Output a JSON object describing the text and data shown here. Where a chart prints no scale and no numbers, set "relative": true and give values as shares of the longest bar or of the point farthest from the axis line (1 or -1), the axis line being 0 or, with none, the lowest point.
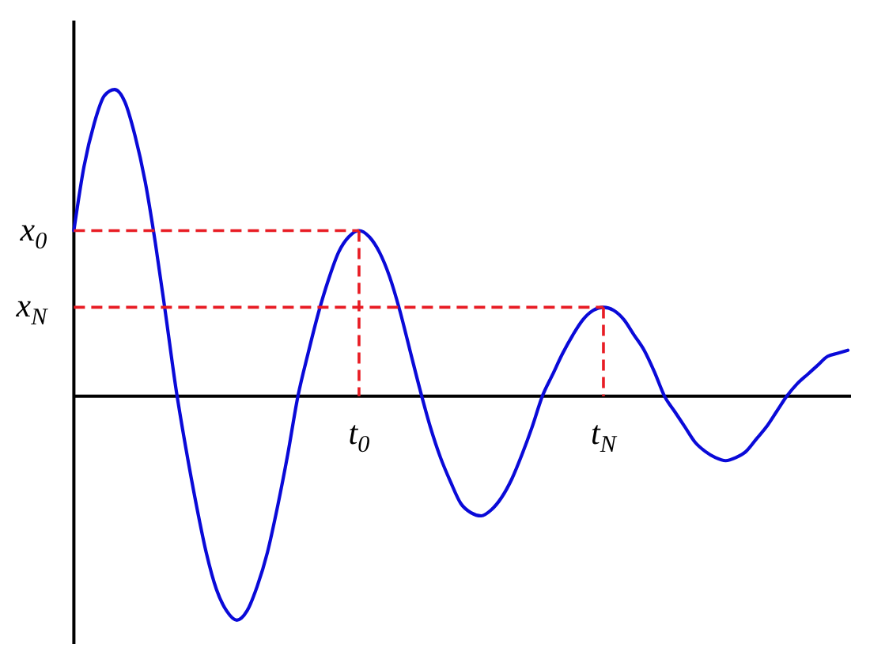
{
  "chart_data": {
    "type": "line",
    "relative": true,
    "categories": [
      null,
      null,
      null,
      null,
      null,
      null,
      null,
      null,
      null,
      null,
      null,
      null,
      null,
      null,
      null,
      null,
      null,
      null,
      null,
      null,
      null,
      null,
      null,
      null,
      null,
      null,
      null,
      null,
      "t$_{0}$",
      null,
      null,
      null,
      null,
      null,
      null,
      null,
      null,
      null,
      null,
      null,
      null,
      null,
      null,
      null,
      null,
      null,
      null,
      null,
      null,
      null,
      null,
      null,
      "t$_{N}$",
      null,
      null,
      null,
      null,
      null,
      null,
      null,
      null,
      null,
      null,
      null,
      null,
      null,
      null,
      null,
      null,
      null,
      null,
      null,
      null,
      null,
      null,
      null,
      null
    ],
    "series": [
      {
        "color": "#0a0ad8",
        "values": [
          0.54,
          0.75,
          0.89,
          0.98,
          1,
          0.96,
          0.85,
          0.7,
          0.5,
          0.27,
          0.03,
          -0.17,
          -0.35,
          -0.51,
          -0.63,
          -0.7,
          -0.73,
          -0.7,
          -0.62,
          -0.51,
          -0.36,
          -0.19,
          0,
          0.14,
          0.27,
          0.38,
          0.47,
          0.52,
          0.54,
          0.52,
          0.47,
          0.39,
          0.28,
          0.15,
          0.02,
          -0.1,
          -0.2,
          -0.28,
          -0.35,
          -0.38,
          -0.39,
          -0.37,
          -0.33,
          -0.27,
          -0.19,
          -0.1,
          0,
          0.07,
          0.14,
          0.2,
          0.25,
          0.28,
          0.29,
          0.28,
          0.25,
          0.2,
          0.15,
          0.08,
          0,
          -0.05,
          -0.1,
          -0.15,
          -0.18,
          -0.2,
          -0.21,
          -0.2,
          -0.18,
          -0.14,
          -0.1,
          -0.05,
          0,
          0.04,
          0.07,
          0.1,
          0.13,
          0.14,
          0.15
        ]
      },
      {
        "name": "x$_{0}$",
        "color": "#e81c24",
        "line_style": "dashed",
        "values": [
          0.54,
          0.54,
          0.54,
          0.54,
          0.54,
          0.54,
          0.54,
          0.54,
          0.54,
          0.54,
          0.54,
          0.54,
          0.54,
          0.54,
          0.54,
          0.54,
          0.54,
          0.54,
          0.54,
          0.54,
          0.54,
          0.54,
          0.54,
          0.54,
          0.54,
          0.54,
          0.54,
          0.54,
          0.54,
          null,
          null,
          null,
          null,
          null,
          null,
          null,
          null,
          null,
          null,
          null,
          null,
          null,
          null,
          null,
          null,
          null,
          null,
          null,
          null,
          null,
          null,
          null,
          null,
          null,
          null,
          null,
          null,
          null,
          null,
          null,
          null,
          null,
          null,
          null,
          null,
          null,
          null,
          null,
          null,
          null,
          null,
          null,
          null,
          null,
          null,
          null,
          null
        ]
      },
      {
        "color": "#e81c24",
        "line_style": "dashed",
        "x": [
          "t$_{0}$",
          "t$_{0}$"
        ],
        "values": [
          0.54,
          0
        ]
      },
      {
        "name": "x$_{N}$",
        "color": "#e81c24",
        "line_style": "dashed",
        "values": [
          0.29,
          0.29,
          0.29,
          0.29,
          0.29,
          0.29,
          0.29,
          0.29,
          0.29,
          0.29,
          0.29,
          0.29,
          0.29,
          0.29,
          0.29,
          0.29,
          0.29,
          0.29,
          0.29,
          0.29,
          0.29,
          0.29,
          0.29,
          0.29,
          0.29,
          0.29,
          0.29,
          0.29,
          0.29,
          0.29,
          0.29,
          0.29,
          0.29,
          0.29,
          0.29,
          0.29,
          0.29,
          0.29,
          0.29,
          0.29,
          0.29,
          0.29,
          0.29,
          0.29,
          0.29,
          0.29,
          0.29,
          0.29,
          0.29,
          0.29,
          0.29,
          0.29,
          0.29,
          null,
          null,
          null,
          null,
          null,
          null,
          null,
          null,
          null,
          null,
          null,
          null,
          null,
          null,
          null,
          null,
          null,
          null,
          null,
          null,
          null,
          null,
          null,
          null
        ]
      },
      {
        "color": "#e81c24",
        "line_style": "dashed",
        "x": [
          "t$_{N}$",
          "t$_{N}$"
        ],
        "values": [
          0.29,
          0
        ]
      }
    ]
  }
}
